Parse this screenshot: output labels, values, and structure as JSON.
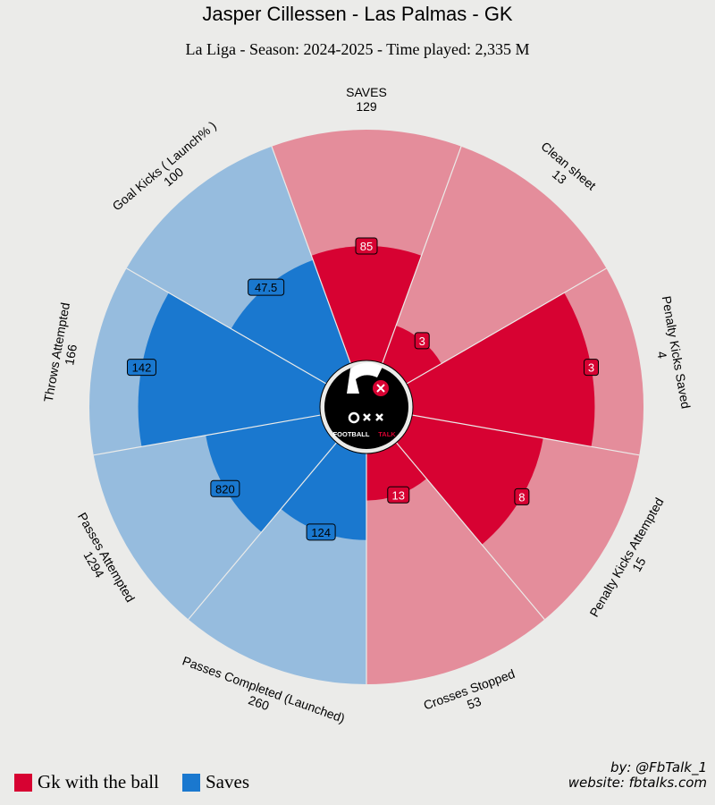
{
  "header": {
    "title": "Jasper Cillessen - Las Palmas - GK",
    "subtitle": "La Liga - Season: 2024-2025 - Time played: 2,335 M"
  },
  "colors": {
    "red_light": "#e48d9b",
    "red_dark": "#d70232",
    "blue_light": "#96bcde",
    "blue_dark": "#1a78cf",
    "background": "#ebebe9"
  },
  "chart_data": {
    "type": "polar-bar",
    "scale": "percentile",
    "categories": [
      {
        "name": "SAVES",
        "max": "129",
        "value": "85",
        "percentile": 50,
        "group": "red"
      },
      {
        "name": "Clean sheet",
        "max": "13",
        "value": "3",
        "percentile": 18,
        "group": "red"
      },
      {
        "name": "Penalty Kicks Saved",
        "max": "4",
        "value": "3",
        "percentile": 79,
        "group": "red"
      },
      {
        "name": "Penalty Kicks Attempted",
        "max": "15",
        "value": "8",
        "percentile": 58,
        "group": "red"
      },
      {
        "name": "Crosses Stopped",
        "max": "53",
        "value": "13",
        "percentile": 21,
        "group": "red"
      },
      {
        "name": "Passes Completed (Launched)",
        "max": "260",
        "value": "124",
        "percentile": 38,
        "group": "blue"
      },
      {
        "name": "Passes Attempted",
        "max": "1294",
        "value": "820",
        "percentile": 51,
        "group": "blue"
      },
      {
        "name": "Throws Attempted",
        "max": "166",
        "value": "142",
        "percentile": 79,
        "group": "blue"
      },
      {
        "name": "Goal Kicks ( Launch% )",
        "max": "100",
        "value": "47.5",
        "percentile": 48,
        "group": "blue"
      }
    ]
  },
  "legend": [
    {
      "label": "Gk with the ball",
      "color": "#d70232"
    },
    {
      "label": "Saves",
      "color": "#1a78cf"
    }
  ],
  "logo": {
    "text": "FOOTBALL",
    "text_accent": "TALK"
  },
  "credits": {
    "by": "by: @FbTalk_1",
    "website": "website: fbtalks.com"
  }
}
